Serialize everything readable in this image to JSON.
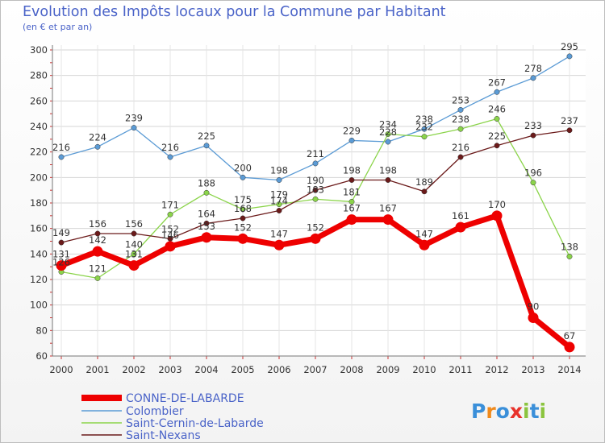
{
  "title": "Evolution des Impôts locaux pour la Commune par Habitant",
  "subtitle": "(en € et par an)",
  "brand": "Proxiti",
  "chart_data": {
    "type": "line",
    "x": [
      "2000",
      "2001",
      "2002",
      "2003",
      "2004",
      "2005",
      "2006",
      "2007",
      "2008",
      "2009",
      "2010",
      "2011",
      "2012",
      "2013",
      "2014"
    ],
    "ylim": [
      60,
      300
    ],
    "yticks": [
      60,
      80,
      100,
      120,
      140,
      160,
      180,
      200,
      220,
      240,
      260,
      280,
      300
    ],
    "grid": true,
    "legend_position": "bottom-left",
    "series": [
      {
        "name": "CONNE-DE-LABARDE",
        "color": "#ee0000",
        "values": [
          131,
          142,
          131,
          146,
          153,
          152,
          147,
          152,
          167,
          167,
          147,
          161,
          170,
          90,
          67
        ]
      },
      {
        "name": "Colombier",
        "color": "#5b9bd5",
        "values": [
          216,
          224,
          239,
          216,
          225,
          200,
          198,
          211,
          229,
          228,
          238,
          253,
          267,
          278,
          295
        ]
      },
      {
        "name": "Saint-Cernin-de-Labarde",
        "color": "#8bd44a",
        "values": [
          126,
          121,
          140,
          171,
          188,
          175,
          179,
          183,
          181,
          234,
          232,
          238,
          246,
          196,
          138
        ]
      },
      {
        "name": "Saint-Nexans",
        "color": "#6b1a1a",
        "values": [
          149,
          156,
          156,
          152,
          164,
          168,
          174,
          190,
          198,
          198,
          189,
          216,
          225,
          233,
          237
        ]
      }
    ]
  }
}
